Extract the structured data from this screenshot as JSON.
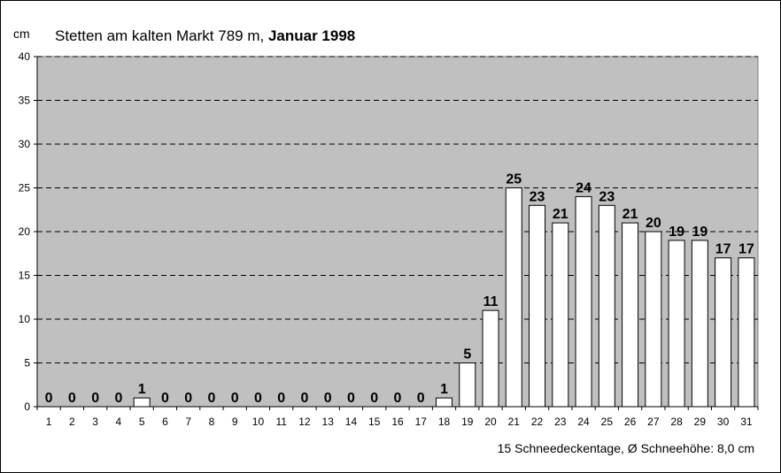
{
  "chart_data": {
    "type": "bar",
    "title_prefix": "Stetten am kalten Markt 789 m,",
    "title_bold": "Januar 1998",
    "ylabel": "cm",
    "ylim": [
      0,
      40
    ],
    "yticks": [
      0,
      5,
      10,
      15,
      20,
      25,
      30,
      35,
      40
    ],
    "categories": [
      "1",
      "2",
      "3",
      "4",
      "5",
      "6",
      "7",
      "8",
      "9",
      "10",
      "11",
      "12",
      "13",
      "14",
      "15",
      "16",
      "17",
      "18",
      "19",
      "20",
      "21",
      "22",
      "23",
      "24",
      "25",
      "26",
      "27",
      "28",
      "29",
      "30",
      "31"
    ],
    "values": [
      0,
      0,
      0,
      0,
      1,
      0,
      0,
      0,
      0,
      0,
      0,
      0,
      0,
      0,
      0,
      0,
      0,
      1,
      5,
      11,
      25,
      23,
      21,
      24,
      23,
      21,
      20,
      19,
      19,
      17,
      17
    ],
    "footer": "15 Schneedeckentage,  Ø Schneehöhe:  8,0 cm",
    "colors": {
      "plot_bg": "#c0c0c0",
      "bar_fill": "#ffffff",
      "bar_stroke": "#000000",
      "grid": "#000000"
    },
    "grid": "dashed horizontal"
  }
}
